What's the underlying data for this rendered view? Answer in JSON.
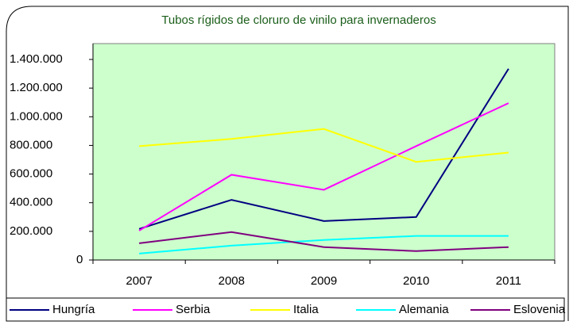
{
  "chart_data": {
    "type": "line",
    "title": "Tubos rígidos de cloruro de vinilo para invernaderos",
    "categories": [
      "2007",
      "2008",
      "2009",
      "2010",
      "2011"
    ],
    "series": [
      {
        "name": "Hungría",
        "color": "#000080",
        "values": [
          217000,
          420000,
          272000,
          300000,
          1335000
        ]
      },
      {
        "name": "Serbia",
        "color": "#ff00ff",
        "values": [
          205000,
          595000,
          490000,
          795000,
          1095000
        ]
      },
      {
        "name": "Italia",
        "color": "#ffff00",
        "values": [
          795000,
          845000,
          915000,
          685000,
          750000
        ]
      },
      {
        "name": "Alemania",
        "color": "#00ffff",
        "values": [
          45000,
          100000,
          140000,
          168000,
          168000
        ]
      },
      {
        "name": "Eslovenia",
        "color": "#800080",
        "values": [
          117000,
          195000,
          90000,
          62000,
          90000
        ]
      }
    ],
    "ylim": [
      0,
      1400000
    ],
    "yticks": [
      0,
      {
        "value": 200000,
        "label": "200.000"
      },
      {
        "value": 400000,
        "label": "400.000"
      },
      {
        "value": 600000,
        "label": "600.000"
      },
      {
        "value": 800000,
        "label": "800.000"
      },
      {
        "value": 1000000,
        "label": "1.000.000"
      },
      {
        "value": 1200000,
        "label": "1.200.000"
      },
      {
        "value": 1400000,
        "label": "1.400.000"
      }
    ],
    "grid": false,
    "plot_background": "#ccffcc",
    "legend": "bottom"
  }
}
